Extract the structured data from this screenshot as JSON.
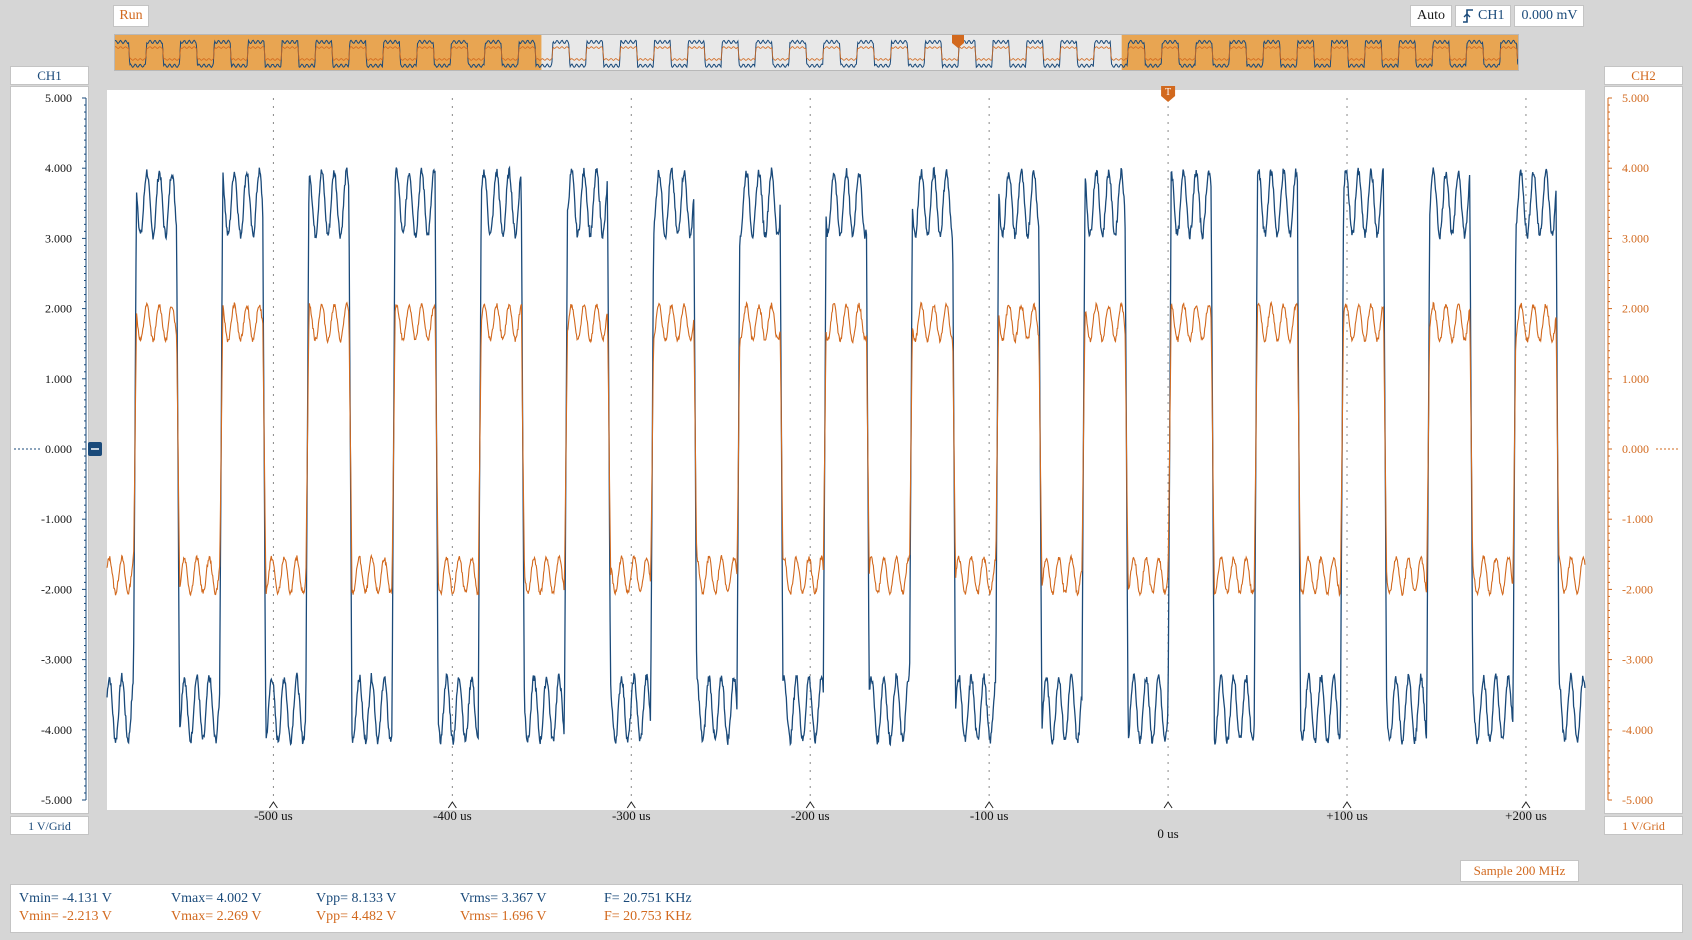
{
  "toolbar": {
    "run_label": "Run",
    "trigger_mode": "Auto",
    "trigger_source": "CH1",
    "trigger_level": "0.000 mV",
    "trigger_edge_icon": "rising-edge-icon",
    "sample_rate": "Sample 200 MHz"
  },
  "channels": {
    "ch1": {
      "label": "CH1",
      "scale": "1 V/Grid",
      "color": "#1a4a7a"
    },
    "ch2": {
      "label": "CH2",
      "scale": "1 V/Grid",
      "color": "#d2691e"
    }
  },
  "chart_data": {
    "type": "line",
    "title": "",
    "xlabel": "",
    "ylabel": "",
    "x_ticks": [
      "-500 us",
      "-400 us",
      "-300 us",
      "-200 us",
      "-100 us",
      "0 us",
      "+100 us",
      "+200 us"
    ],
    "x_tick_values": [
      -500,
      -400,
      -300,
      -200,
      -100,
      0,
      100,
      200
    ],
    "xlim": [
      -593,
      233
    ],
    "x_units": "us",
    "ylim": [
      -5,
      5
    ],
    "y_ticks_ch1": [
      "5.000",
      "4.000",
      "3.000",
      "2.000",
      "1.000",
      "0.000",
      "-1.000",
      "-2.000",
      "-3.000",
      "-4.000",
      "-5.000"
    ],
    "y_ticks_ch2": [
      "5.000",
      "4.000",
      "3.000",
      "2.000",
      "1.000",
      "0.000",
      "-1.000",
      "-2.000",
      "-3.000",
      "-4.000",
      "-5.000"
    ],
    "grid": true,
    "trigger_x": 0,
    "series": [
      {
        "name": "CH1",
        "shape": "square-with-ripple",
        "frequency_khz": 20.751,
        "high": 3.5,
        "low": -3.7,
        "ripple": 0.45
      },
      {
        "name": "CH2",
        "shape": "square-with-ripple",
        "frequency_khz": 20.753,
        "high": 1.8,
        "low": -1.8,
        "ripple": 0.25
      }
    ]
  },
  "measurements": {
    "ch1": {
      "vmin": "Vmin= -4.131 V",
      "vmax": "Vmax= 4.002 V",
      "vpp": "Vpp= 8.133 V",
      "vrms": "Vrms= 3.367 V",
      "freq": "F= 20.751 KHz"
    },
    "ch2": {
      "vmin": "Vmin= -2.213 V",
      "vmax": "Vmax= 2.269 V",
      "vpp": "Vpp= 4.482 V",
      "vrms": "Vrms= 1.696 V",
      "freq": "F= 20.753 KHz"
    }
  }
}
